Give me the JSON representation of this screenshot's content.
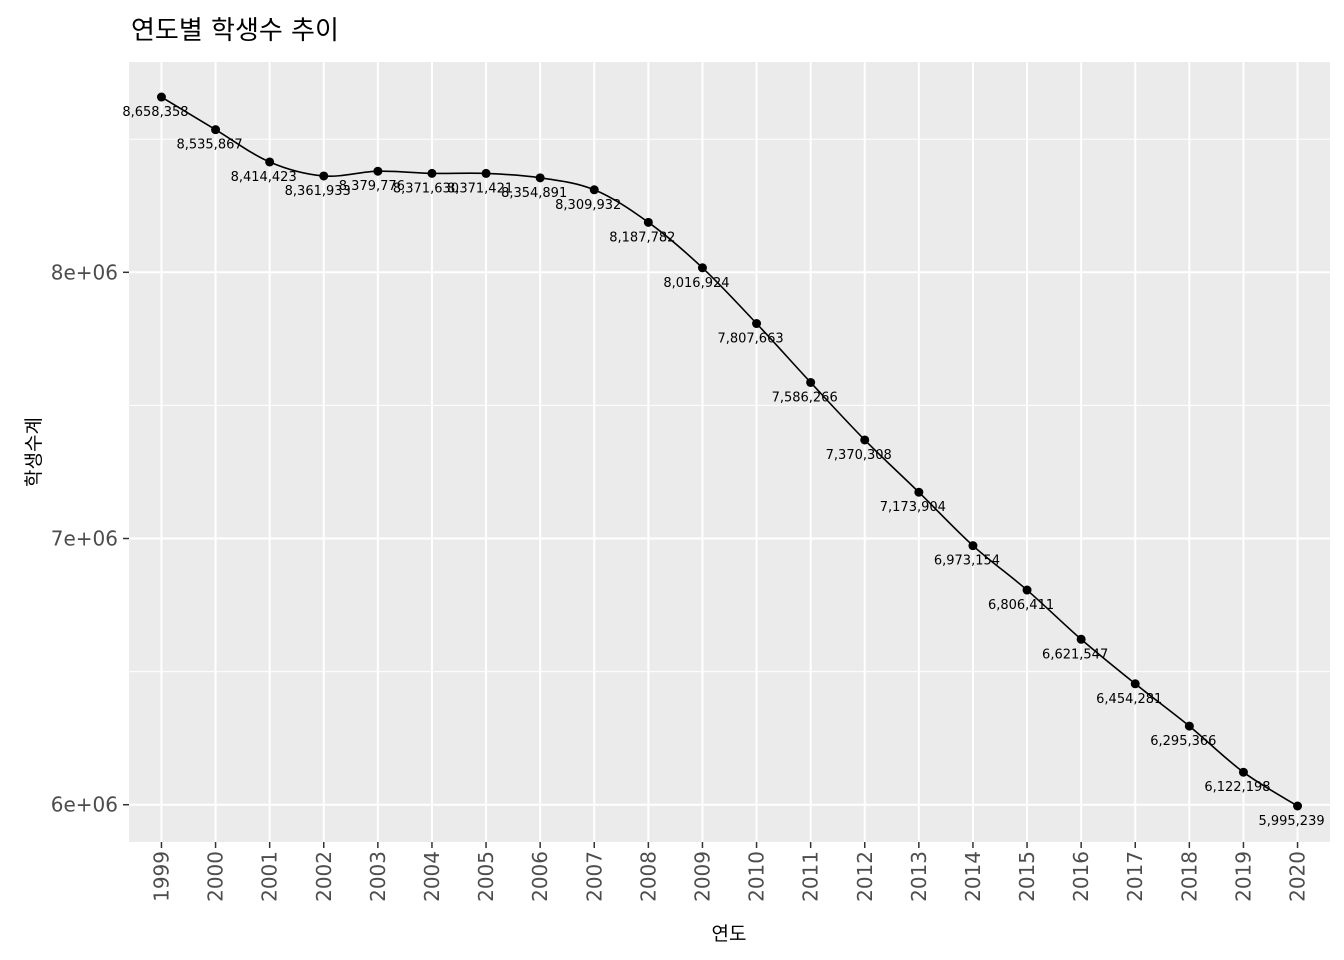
{
  "chart_data": {
    "type": "line",
    "title": "연도별 학생수 추이",
    "xlabel": "연도",
    "ylabel": "학생수계",
    "x": [
      "1999",
      "2000",
      "2001",
      "2002",
      "2003",
      "2004",
      "2005",
      "2006",
      "2007",
      "2008",
      "2009",
      "2010",
      "2011",
      "2012",
      "2013",
      "2014",
      "2015",
      "2016",
      "2017",
      "2018",
      "2019",
      "2020"
    ],
    "values": [
      8658358,
      8535867,
      8414423,
      8361933,
      8379776,
      8371630,
      8371421,
      8354891,
      8309932,
      8187782,
      8016924,
      7807663,
      7586266,
      7370308,
      7173904,
      6973154,
      6806411,
      6621547,
      6454281,
      6295366,
      6122198,
      5995239
    ],
    "labels": [
      "8,658,358",
      "8,535,867",
      "8,414,423",
      "8,361,933",
      "8,379,776",
      "8,371,630",
      "8,371,421",
      "8,354,891",
      "8,309,932",
      "8,187,782",
      "8,016,924",
      "7,807,663",
      "7,586,266",
      "7,370,308",
      "7,173,904",
      "6,973,154",
      "6,806,411",
      "6,621,547",
      "6,454,281",
      "6,295,366",
      "6,122,198",
      "5,995,239"
    ],
    "y_ticks": [
      6000000,
      7000000,
      8000000
    ],
    "y_tick_labels": [
      "6e+06",
      "7e+06",
      "8e+06"
    ],
    "ylim": [
      5860000,
      8790000
    ],
    "grid": true,
    "colors": {
      "panel": "#ebebeb",
      "grid": "#ffffff",
      "line": "#000000",
      "point": "#000000"
    }
  }
}
